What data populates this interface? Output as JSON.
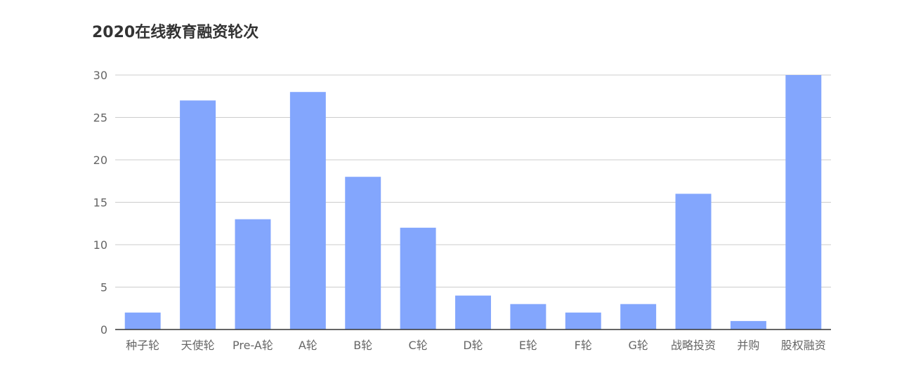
{
  "chart_data": {
    "type": "bar",
    "title": "2020在线教育融资轮次",
    "categories": [
      "种子轮",
      "天使轮",
      "Pre-A轮",
      "A轮",
      "B轮",
      "C轮",
      "D轮",
      "E轮",
      "F轮",
      "G轮",
      "战略投资",
      "并购",
      "股权融资"
    ],
    "values": [
      2,
      27,
      13,
      28,
      18,
      12,
      4,
      3,
      2,
      3,
      16,
      1,
      30
    ],
    "ylim": [
      0,
      30
    ],
    "yticks": [
      0,
      5,
      10,
      15,
      20,
      25,
      30
    ],
    "grid": true,
    "bar_color": "#83a6fd",
    "grid_color": "#cccccc",
    "axis_color": "#333333"
  }
}
